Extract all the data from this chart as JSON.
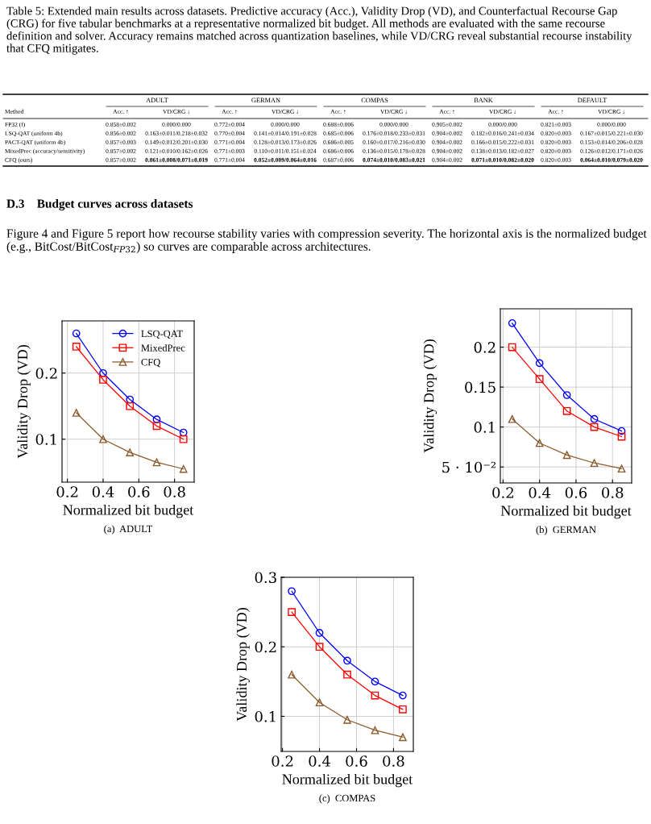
{
  "chart_data": [
    {
      "type": "line",
      "xlabel": "Normalized bit budget",
      "ylabel": "Validity Drop (VD)",
      "x": [
        0.25,
        0.4,
        0.55,
        0.7,
        0.85
      ],
      "xlim": [
        0.17,
        0.91
      ],
      "xticks": [
        0.2,
        0.4,
        0.6,
        0.8
      ],
      "ylim": [
        0.035,
        0.279
      ],
      "yticks": [
        0.1,
        0.2
      ],
      "grid": true,
      "legend": "top right",
      "series": [
        {
          "name": "LSQ-QAT",
          "color": "#0000ff",
          "marker": "circle",
          "values": [
            0.26,
            0.2,
            0.16,
            0.13,
            0.11
          ]
        },
        {
          "name": "MixedPrec",
          "color": "#ff0000",
          "marker": "square",
          "values": [
            0.24,
            0.19,
            0.15,
            0.12,
            0.1
          ]
        },
        {
          "name": "CFQ",
          "color": "#8b5a2b",
          "marker": "triangle",
          "values": [
            0.14,
            0.1,
            0.08,
            0.065,
            0.055
          ]
        }
      ],
      "annotations": [
        "Table 5: Extended main results across datasets. Predictive accuracy (Acc.), Validity Drop (VD), and Counterfactual Recourse Gap (CRG) for five tabular benchmarks at a representative normalized bit budget. All methods are evaluated with the same recourse definition and solver. Accuracy remains matched across quantization baselines, while VD/CRG reveal substantial recourse instability that CFQ mitigates.",
        "\tADULT\t\tGERMAN\t\tCOMPAS\t\tBANK\t\tDEFAULT",
        "Method\tAcc. ↑\tVD/CRG ↓\tAcc. ↑\tVD/CRG ↓\tAcc. ↑\tVD/CRG ↓\tAcc. ↑\tVD/CRG ↓\tAcc. ↑\tVD/CRG ↓",
        "FP32 (f)\t0.858±0.002\t0.000/0.000\t0.772±0.004\t0.000/0.000\t0.688±0.006\t0.000/0.000\t0.905±0.002\t0.000/0.000\t0.821±0.003\t0.000/0.000",
        "LSQ-QAT (uniform 4b)\t0.856±0.002\t0.163±0.011/0.218±0.032\t0.770±0.004\t0.141±0.014/0.191±0.028\t0.685±0.006\t0.176±0.018/0.233±0.031\t0.904±0.002\t0.182±0.016/0.241±0.034\t0.820±0.003\t0.167±0.015/0.221±0.030",
        "PACT-QAT (uniform 4b)\t0.857±0.003\t0.149±0.012/0.201±0.030\t0.771±0.004\t0.128±0.013/0.173±0.026\t0.686±0.005\t0.160±0.017/0.216±0.030\t0.904±0.002\t0.166±0.015/0.222±0.031\t0.820±0.003\t0.153±0.014/0.206±0.028",
        "MixedPrec (accuracy/sensitivity)\t0.857±0.002\t0.121±0.010/0.162±0.026\t0.771±0.003\t0.110±0.011/0.151±0.024\t0.686±0.006\t0.136±0.015/0.178±0.028\t0.904±0.002\t0.138±0.013/0.182±0.027\t0.820±0.003\t0.126±0.012/0.171±0.026",
        "CFQ (ours)\t0.857±0.002\t0.061±0.008/0.071±0.019\t0.771±0.004\t0.052±0.009/0.064±0.016\t0.687±0.006\t0.074±0.010/0.083±0.021\t0.904±0.002\t0.071±0.010/0.082±0.020\t0.820±0.003\t0.064±0.010/0.079±0.020",
        "D.3    Budget curves across datasets",
        "Figure 4 and Figure 5 report how recourse stability varies with compression severity. The horizontal axis is the normalized budget (e.g., BitCost/BitCost$_{FP32}$) so curves are comparable across architectures.",
        "(a)  ADULT"
      ]
    },
    {
      "type": "line",
      "xlabel": "Normalized bit budget",
      "ylabel": "Validity Drop (VD)",
      "x": [
        0.25,
        0.4,
        0.55,
        0.7,
        0.85
      ],
      "xlim": [
        0.185,
        0.905
      ],
      "xticks": [
        0.2,
        0.4,
        0.6,
        0.8
      ],
      "ylim": [
        0.03,
        0.248
      ],
      "yticks": [
        {
          "value": 0.05,
          "label": "5 · 10⁻²"
        },
        0.1,
        0.15,
        0.2
      ],
      "grid": true,
      "series": [
        {
          "color": "#0000ff",
          "marker": "circle",
          "values": [
            0.23,
            0.18,
            0.14,
            0.11,
            0.095
          ]
        },
        {
          "color": "#ff0000",
          "marker": "square",
          "values": [
            0.2,
            0.16,
            0.12,
            0.1,
            0.088
          ]
        },
        {
          "color": "#8b5a2b",
          "marker": "triangle",
          "values": [
            0.11,
            0.08,
            0.065,
            0.055,
            0.048
          ]
        }
      ],
      "annotations": [
        "(b)  GERMAN"
      ]
    },
    {
      "type": "line",
      "xlabel": "Normalized bit budget",
      "ylabel": "Validity Drop (VD)",
      "x": [
        0.25,
        0.4,
        0.55,
        0.7,
        0.85
      ],
      "xlim": [
        0.193,
        0.907
      ],
      "xticks": [
        0.2,
        0.4,
        0.6,
        0.8
      ],
      "ylim": [
        0.0495,
        0.3
      ],
      "yticks": [
        0.1,
        0.2,
        0.3
      ],
      "grid": true,
      "series": [
        {
          "color": "#0000ff",
          "marker": "circle",
          "values": [
            0.28,
            0.22,
            0.18,
            0.15,
            0.13
          ]
        },
        {
          "color": "#ff0000",
          "marker": "square",
          "values": [
            0.25,
            0.2,
            0.16,
            0.13,
            0.11
          ]
        },
        {
          "color": "#8b5a2b",
          "marker": "triangle",
          "values": [
            0.16,
            0.12,
            0.095,
            0.08,
            0.07
          ]
        }
      ],
      "annotations": [
        "(c)  COMPAS"
      ]
    }
  ]
}
